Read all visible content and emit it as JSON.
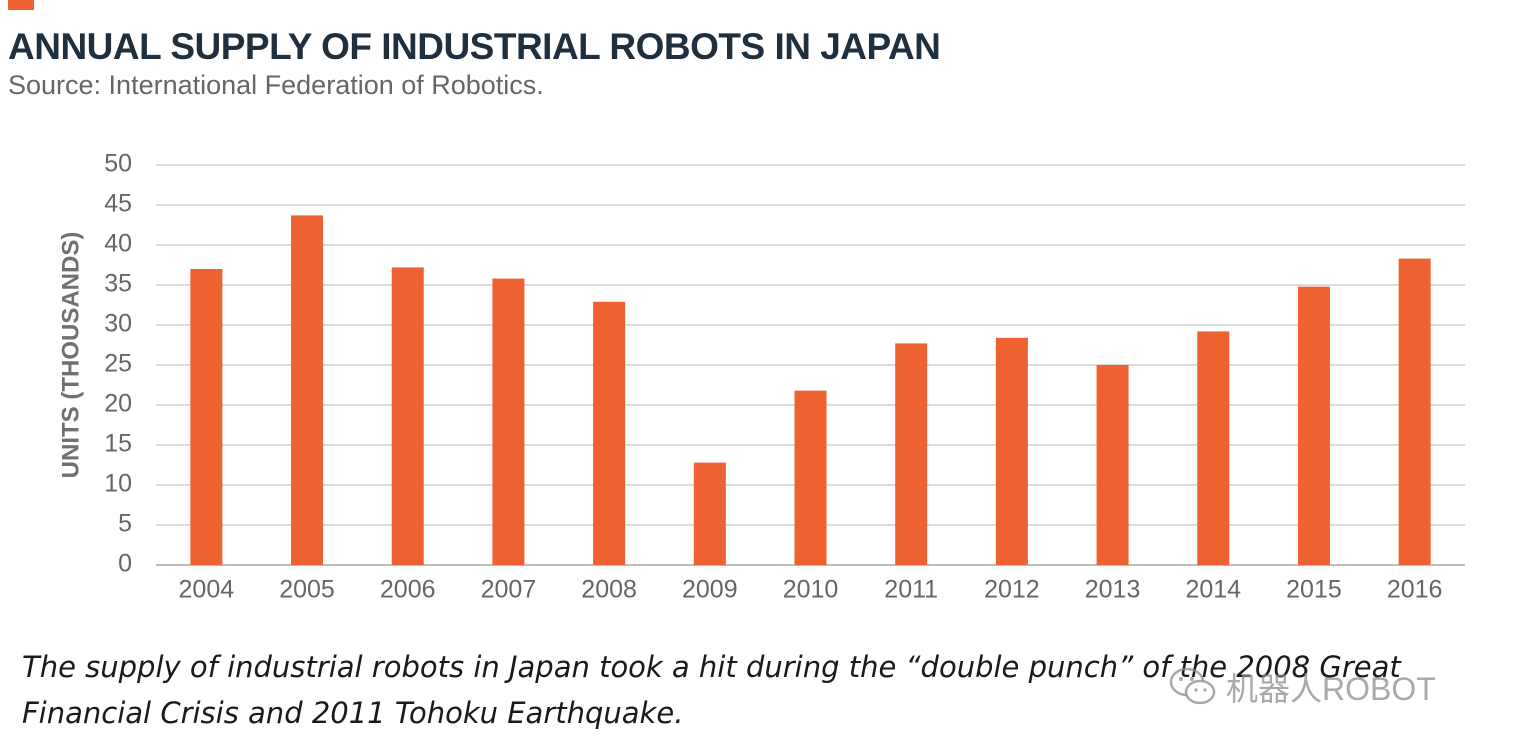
{
  "header": {
    "title": "ANNUAL SUPPLY OF INDUSTRIAL ROBOTS IN JAPAN",
    "subtitle": "Source: International Federation of Robotics."
  },
  "caption": "The supply of industrial robots in Japan took a hit during the “double punch” of the 2008 Great Financial Crisis and 2011 Tohoku Earthquake.",
  "watermark": {
    "icon": "wechat-icon",
    "text": "机器人ROBOT"
  },
  "colors": {
    "bar": "#ee6130",
    "accent": "#ee6130",
    "grid": "#d0d0d0",
    "title": "#1f2f3d"
  },
  "chart_data": {
    "type": "bar",
    "title": "ANNUAL SUPPLY OF INDUSTRIAL ROBOTS IN JAPAN",
    "subtitle": "Source: International Federation of Robotics.",
    "xlabel": "",
    "ylabel": "UNITS (THOUSANDS)",
    "categories": [
      "2004",
      "2005",
      "2006",
      "2007",
      "2008",
      "2009",
      "2010",
      "2011",
      "2012",
      "2013",
      "2014",
      "2015",
      "2016"
    ],
    "values": [
      37,
      43.7,
      37.2,
      35.8,
      32.9,
      12.8,
      21.8,
      27.7,
      28.4,
      25,
      29.2,
      34.8,
      38.3
    ],
    "ylim": [
      0,
      50
    ],
    "yticks": [
      0,
      5,
      10,
      15,
      20,
      25,
      30,
      35,
      40,
      45,
      50
    ],
    "grid": true,
    "legend": "none"
  }
}
